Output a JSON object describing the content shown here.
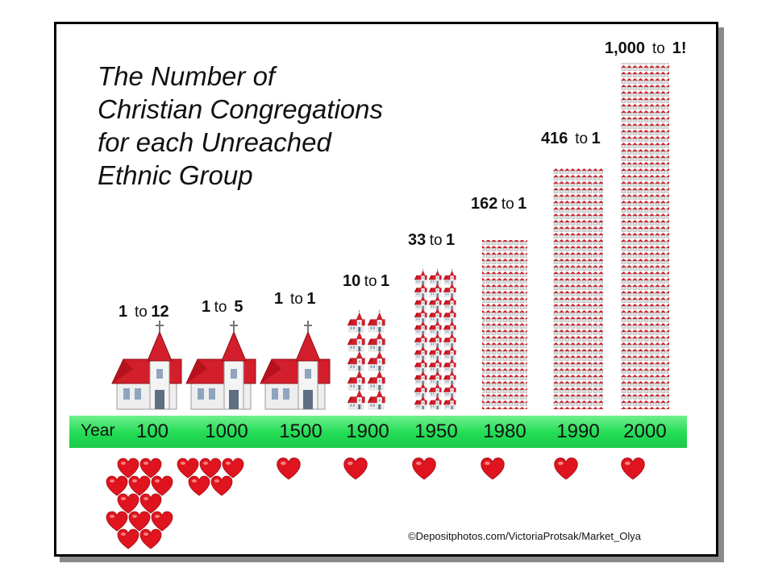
{
  "title": "The Number of\nChristian Congregations\nfor each Unreached\nEthnic Group",
  "credit": "©Depositphotos.com/VictoriaProtsak/Market_Olya",
  "year_label": "Year",
  "colors": {
    "band": "#22dc55",
    "roof": "#d21f2b",
    "heart": "#e0141e",
    "wall": "#f0f0f0"
  },
  "chart_data": {
    "type": "table",
    "title": "The Number of Christian Congregations for each Unreached Ethnic Group",
    "xlabel": "Year",
    "categories": [
      "100",
      "1000",
      "1500",
      "1900",
      "1950",
      "1980",
      "1990",
      "2000"
    ],
    "rows": [
      {
        "year": "100",
        "congregations": 1,
        "groups": 12,
        "left": "1",
        "to": "to",
        "right": "12"
      },
      {
        "year": "1000",
        "congregations": 1,
        "groups": 5,
        "left": "1",
        "to": "to",
        "right": "5"
      },
      {
        "year": "1500",
        "congregations": 1,
        "groups": 1,
        "left": "1",
        "to": "to",
        "right": "1"
      },
      {
        "year": "1900",
        "congregations": 10,
        "groups": 1,
        "left": "10",
        "to": "to",
        "right": "1"
      },
      {
        "year": "1950",
        "congregations": 33,
        "groups": 1,
        "left": "33",
        "to": "to",
        "right": "1"
      },
      {
        "year": "1980",
        "congregations": 162,
        "groups": 1,
        "left": "162",
        "to": "to",
        "right": "1"
      },
      {
        "year": "1990",
        "congregations": 416,
        "groups": 1,
        "left": "416",
        "to": "to",
        "right": "1"
      },
      {
        "year": "2000",
        "congregations": 1000,
        "groups": 1,
        "left": "1,000",
        "to": "to",
        "right": "1!"
      }
    ]
  }
}
